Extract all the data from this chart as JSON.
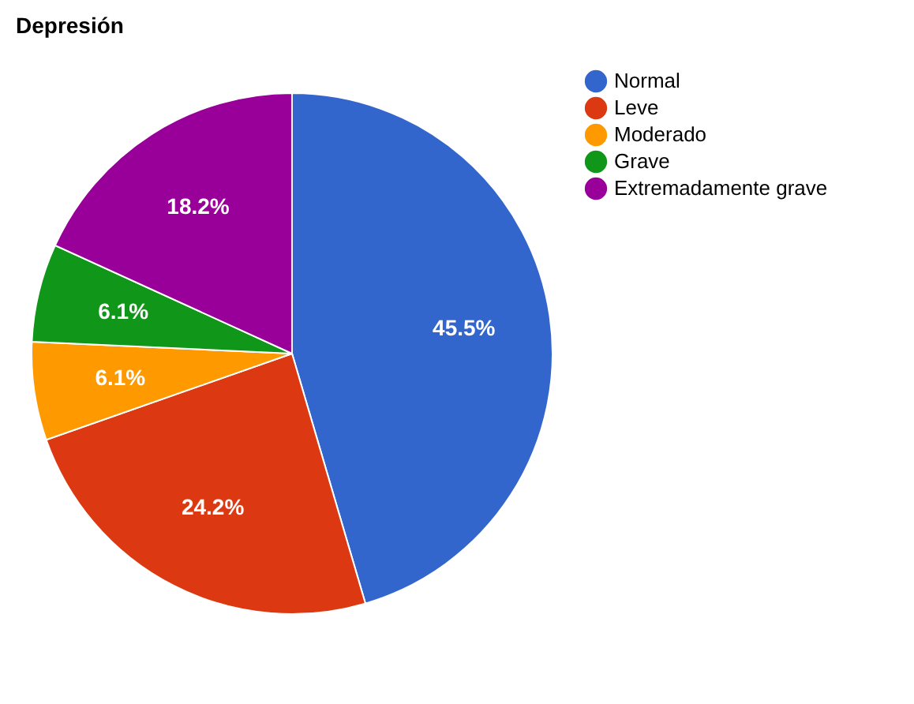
{
  "chart_data": {
    "type": "pie",
    "title": "Depresión",
    "categories": [
      "Normal",
      "Leve",
      "Moderado",
      "Grave",
      "Extremadamente grave"
    ],
    "values": [
      45.5,
      24.2,
      6.1,
      6.1,
      18.2
    ],
    "value_labels": [
      "45.5%",
      "24.2%",
      "6.1%",
      "6.1%",
      "18.2%"
    ],
    "colors": [
      "#3366cc",
      "#dc3912",
      "#ff9900",
      "#109618",
      "#990099"
    ],
    "legend": "top right"
  }
}
